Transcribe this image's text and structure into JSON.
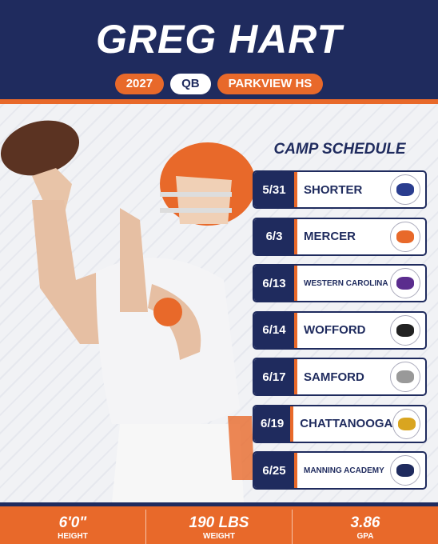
{
  "header": {
    "name": "GREG HART",
    "tags": [
      "2027",
      "QB",
      "PARKVIEW HS"
    ]
  },
  "schedule": {
    "title": "CAMP SCHEDULE",
    "rows": [
      {
        "date": "5/31",
        "school": "SHORTER"
      },
      {
        "date": "6/3",
        "school": "MERCER"
      },
      {
        "date": "6/13",
        "school": "WESTERN CAROLINA"
      },
      {
        "date": "6/14",
        "school": "WOFFORD"
      },
      {
        "date": "6/17",
        "school": "SAMFORD"
      },
      {
        "date": "6/19",
        "school": "CHATTANOOGA"
      },
      {
        "date": "6/25",
        "school": "MANNING ACADEMY"
      }
    ]
  },
  "stats": [
    {
      "value": "6'0\"",
      "label": "HEIGHT"
    },
    {
      "value": "190 LBS",
      "label": "WEIGHT"
    },
    {
      "value": "3.86",
      "label": "GPA"
    }
  ]
}
